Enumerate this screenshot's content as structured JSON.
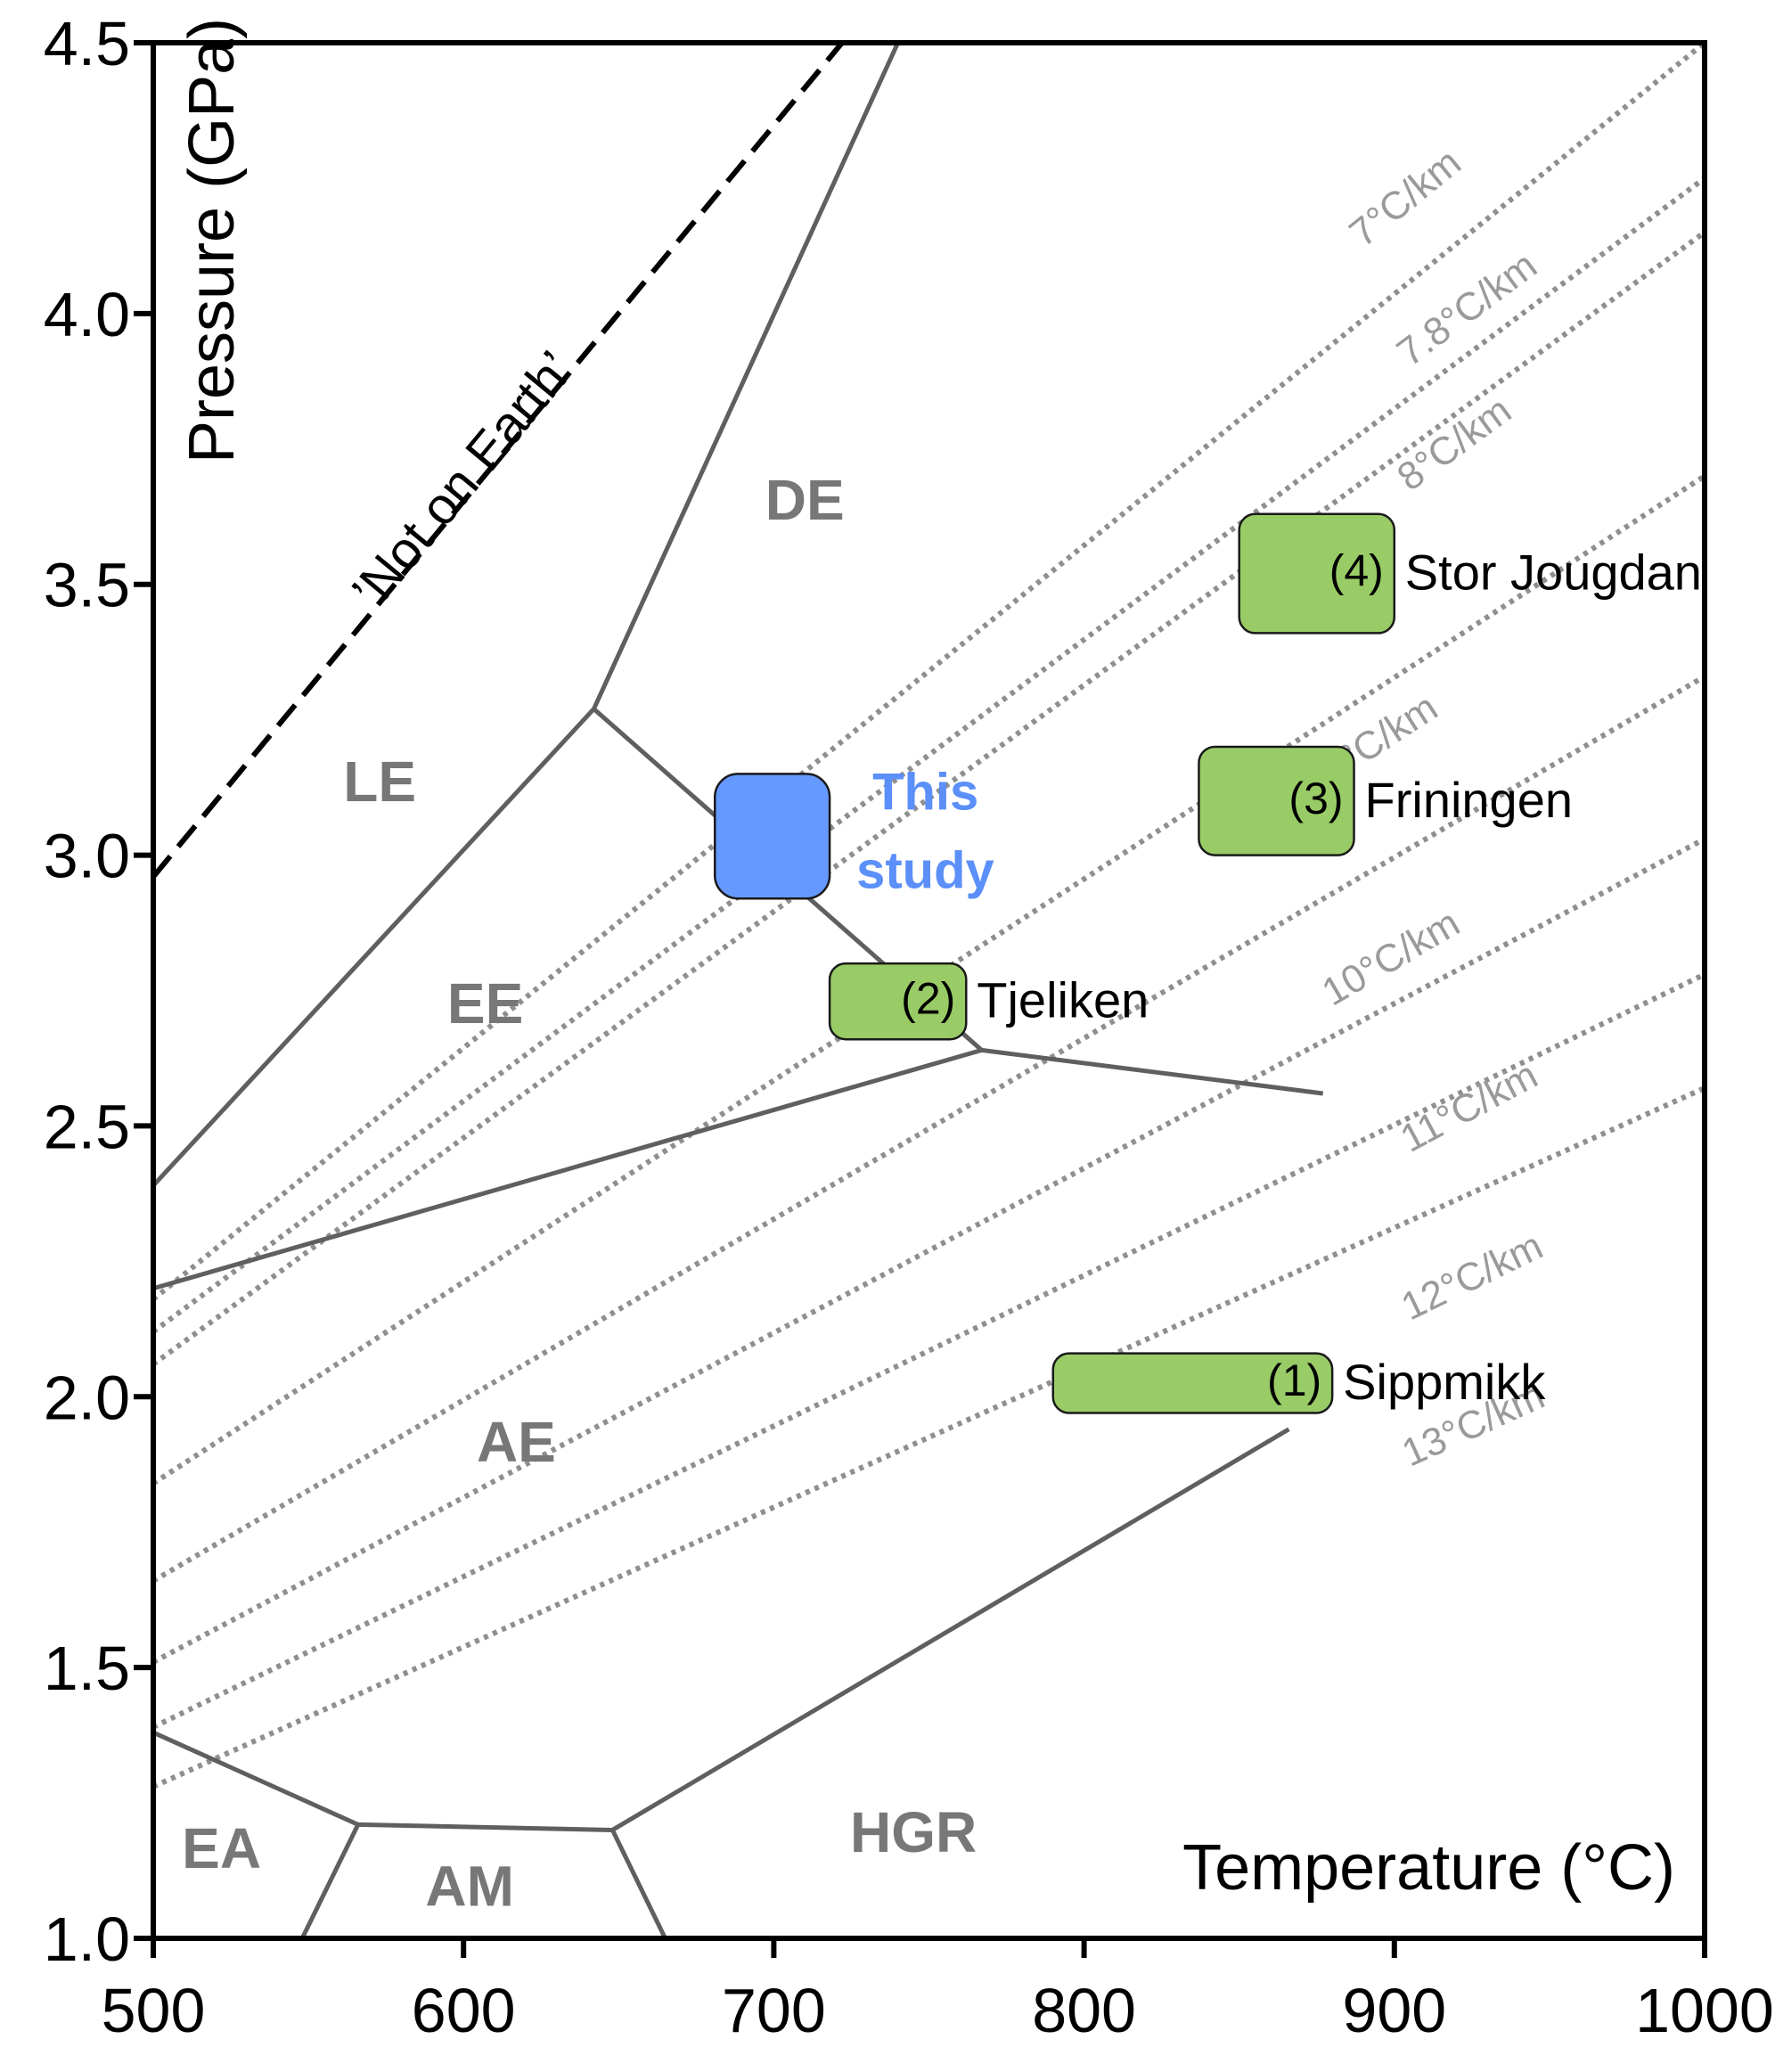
{
  "chart_data": {
    "type": "scatter",
    "xlabel": "Temperature (°C)",
    "ylabel": "Pressure (GPa)",
    "xlim": [
      500,
      1000
    ],
    "ylim": [
      1.0,
      4.5
    ],
    "x_ticks": [
      "500",
      "600",
      "700",
      "800",
      "900",
      "1000"
    ],
    "y_ticks": [
      "1.0",
      "1.5",
      "2.0",
      "2.5",
      "3.0",
      "3.5",
      "4.0",
      "4.5"
    ],
    "grid": false,
    "annotations": {
      "not_on_earth": "’Not on Earth’"
    },
    "fields": [
      {
        "label": "DE",
        "x": 710,
        "y": 3.62
      },
      {
        "label": "LE",
        "x": 573,
        "y": 3.1
      },
      {
        "label": "EE",
        "x": 607,
        "y": 2.69
      },
      {
        "label": "AE",
        "x": 617,
        "y": 1.88
      },
      {
        "label": "EA",
        "x": 522,
        "y": 1.13
      },
      {
        "label": "AM",
        "x": 602,
        "y": 1.06
      },
      {
        "label": "HGR",
        "x": 745,
        "y": 1.16
      }
    ],
    "boundaries": [
      {
        "name": "LE-DE",
        "points": [
          [
            500,
            2.39
          ],
          [
            642,
            3.27
          ],
          [
            740,
            4.5
          ]
        ]
      },
      {
        "name": "DE-EE",
        "points": [
          [
            642,
            3.27
          ],
          [
            767,
            2.64
          ],
          [
            877,
            2.56
          ]
        ]
      },
      {
        "name": "EE-AE",
        "points": [
          [
            500,
            2.2
          ],
          [
            767,
            2.64
          ]
        ]
      },
      {
        "name": "EA-AM",
        "points": [
          [
            500,
            1.38
          ],
          [
            566,
            1.21
          ],
          [
            548,
            1.0
          ]
        ]
      },
      {
        "name": "AM-HGR",
        "points": [
          [
            566,
            1.21
          ],
          [
            648,
            1.2
          ],
          [
            665,
            1.0
          ]
        ]
      },
      {
        "name": "AE-HGR",
        "points": [
          [
            648,
            1.2
          ],
          [
            866,
            1.94
          ]
        ]
      }
    ],
    "not_on_earth_line": [
      [
        500,
        2.96
      ],
      [
        722,
        4.5
      ]
    ],
    "geotherms": [
      {
        "label": "7°C/km",
        "points": [
          [
            500,
            2.18
          ],
          [
            1000,
            4.5
          ]
        ]
      },
      {
        "label": "7.8°C/km",
        "points": [
          [
            500,
            2.12
          ],
          [
            1000,
            4.25
          ]
        ]
      },
      {
        "label": "8°C/km",
        "points": [
          [
            500,
            2.06
          ],
          [
            1000,
            4.15
          ]
        ]
      },
      {
        "label": "9°C/km",
        "points": [
          [
            500,
            1.84
          ],
          [
            1000,
            3.7
          ]
        ]
      },
      {
        "label": "10°C/km",
        "points": [
          [
            500,
            1.66
          ],
          [
            1000,
            3.33
          ]
        ]
      },
      {
        "label": "11°C/km",
        "points": [
          [
            500,
            1.51
          ],
          [
            1000,
            3.03
          ]
        ]
      },
      {
        "label": "12°C/km",
        "points": [
          [
            500,
            1.39
          ],
          [
            1000,
            2.78
          ]
        ]
      },
      {
        "label": "13°C/km",
        "points": [
          [
            500,
            1.28
          ],
          [
            1000,
            2.57
          ]
        ]
      }
    ],
    "geotherm_label_texts": [
      "7°C/km",
      "7.8°C/km",
      "8°C/km",
      "9°C/km",
      "10°C/km",
      "11°C/km",
      "12°C/km",
      "13°C/km"
    ],
    "samples": [
      {
        "number": "(1)",
        "name": "Sippmikk",
        "t_min": 790,
        "t_max": 880,
        "p_min": 1.97,
        "p_max": 2.08,
        "color": "#99cc66"
      },
      {
        "number": "(2)",
        "name": "Tjeliken",
        "t_min": 718,
        "t_max": 762,
        "p_min": 2.66,
        "p_max": 2.8,
        "color": "#99cc66"
      },
      {
        "number": "(3)",
        "name": "Friningen",
        "t_min": 837,
        "t_max": 887,
        "p_min": 3.0,
        "p_max": 3.2,
        "color": "#99cc66"
      },
      {
        "number": "(4)",
        "name": "Stor Jougdan",
        "t_min": 850,
        "t_max": 900,
        "p_min": 3.41,
        "p_max": 3.63,
        "color": "#99cc66"
      },
      {
        "number": "",
        "name": "This study",
        "name_lines": [
          "This",
          "study"
        ],
        "t_min": 681,
        "t_max": 718,
        "p_min": 2.92,
        "p_max": 3.15,
        "color": "#6699ff"
      }
    ]
  }
}
